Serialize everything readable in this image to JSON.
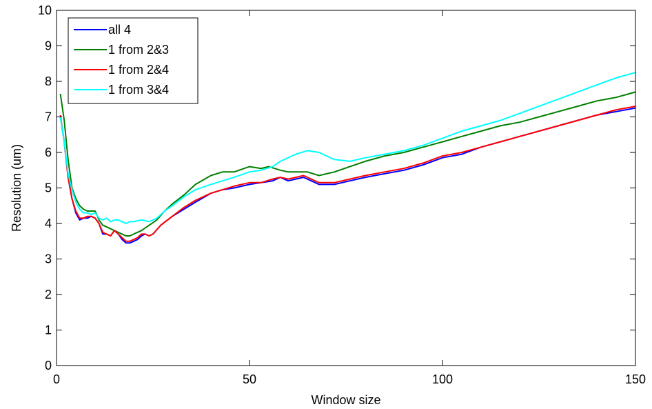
{
  "chart_data": {
    "type": "line",
    "title": "",
    "xlabel": "Window size",
    "ylabel": "Resolution (um)",
    "xlim": [
      0,
      150
    ],
    "ylim": [
      0,
      10
    ],
    "xticks": [
      0,
      50,
      100,
      150
    ],
    "yticks": [
      0,
      1,
      2,
      3,
      4,
      5,
      6,
      7,
      8,
      9,
      10
    ],
    "grid": false,
    "legend": {
      "placement": "top-left"
    },
    "series": [
      {
        "name": "all 4",
        "color": "#0000ff",
        "points": [
          [
            1,
            7.0
          ],
          [
            2,
            6.3
          ],
          [
            3,
            5.3
          ],
          [
            4,
            4.7
          ],
          [
            5,
            4.3
          ],
          [
            6,
            4.1
          ],
          [
            7,
            4.15
          ],
          [
            8,
            4.15
          ],
          [
            9,
            4.2
          ],
          [
            10,
            4.15
          ],
          [
            11,
            4.0
          ],
          [
            12,
            3.7
          ],
          [
            13,
            3.7
          ],
          [
            14,
            3.65
          ],
          [
            15,
            3.8
          ],
          [
            16,
            3.7
          ],
          [
            17,
            3.55
          ],
          [
            18,
            3.45
          ],
          [
            19,
            3.45
          ],
          [
            20,
            3.5
          ],
          [
            21,
            3.55
          ],
          [
            22,
            3.65
          ],
          [
            23,
            3.7
          ],
          [
            24,
            3.65
          ],
          [
            25,
            3.7
          ],
          [
            27,
            3.95
          ],
          [
            30,
            4.2
          ],
          [
            33,
            4.4
          ],
          [
            36,
            4.6
          ],
          [
            40,
            4.85
          ],
          [
            43,
            4.95
          ],
          [
            46,
            5.0
          ],
          [
            50,
            5.1
          ],
          [
            53,
            5.15
          ],
          [
            56,
            5.2
          ],
          [
            58,
            5.3
          ],
          [
            60,
            5.2
          ],
          [
            62,
            5.25
          ],
          [
            64,
            5.3
          ],
          [
            66,
            5.2
          ],
          [
            68,
            5.1
          ],
          [
            72,
            5.1
          ],
          [
            76,
            5.2
          ],
          [
            80,
            5.3
          ],
          [
            85,
            5.4
          ],
          [
            90,
            5.5
          ],
          [
            95,
            5.65
          ],
          [
            100,
            5.85
          ],
          [
            105,
            5.95
          ],
          [
            110,
            6.15
          ],
          [
            115,
            6.3
          ],
          [
            120,
            6.45
          ],
          [
            125,
            6.6
          ],
          [
            130,
            6.75
          ],
          [
            135,
            6.9
          ],
          [
            140,
            7.05
          ],
          [
            145,
            7.15
          ],
          [
            150,
            7.25
          ]
        ]
      },
      {
        "name": "1 from 2&3",
        "color": "#007f00",
        "points": [
          [
            1,
            7.65
          ],
          [
            2,
            6.9
          ],
          [
            3,
            5.8
          ],
          [
            4,
            5.0
          ],
          [
            5,
            4.7
          ],
          [
            6,
            4.5
          ],
          [
            7,
            4.4
          ],
          [
            8,
            4.35
          ],
          [
            9,
            4.35
          ],
          [
            10,
            4.35
          ],
          [
            11,
            4.1
          ],
          [
            12,
            3.95
          ],
          [
            13,
            3.9
          ],
          [
            14,
            3.85
          ],
          [
            15,
            3.8
          ],
          [
            16,
            3.75
          ],
          [
            17,
            3.7
          ],
          [
            18,
            3.65
          ],
          [
            19,
            3.65
          ],
          [
            20,
            3.7
          ],
          [
            22,
            3.8
          ],
          [
            24,
            3.95
          ],
          [
            26,
            4.1
          ],
          [
            28,
            4.35
          ],
          [
            30,
            4.55
          ],
          [
            33,
            4.8
          ],
          [
            36,
            5.1
          ],
          [
            40,
            5.35
          ],
          [
            43,
            5.45
          ],
          [
            46,
            5.45
          ],
          [
            50,
            5.6
          ],
          [
            53,
            5.55
          ],
          [
            55,
            5.6
          ],
          [
            58,
            5.5
          ],
          [
            60,
            5.45
          ],
          [
            62,
            5.45
          ],
          [
            65,
            5.45
          ],
          [
            68,
            5.35
          ],
          [
            72,
            5.45
          ],
          [
            76,
            5.6
          ],
          [
            80,
            5.75
          ],
          [
            85,
            5.9
          ],
          [
            90,
            6.0
          ],
          [
            95,
            6.15
          ],
          [
            100,
            6.3
          ],
          [
            105,
            6.45
          ],
          [
            110,
            6.6
          ],
          [
            115,
            6.75
          ],
          [
            120,
            6.85
          ],
          [
            125,
            7.0
          ],
          [
            130,
            7.15
          ],
          [
            135,
            7.3
          ],
          [
            140,
            7.45
          ],
          [
            145,
            7.55
          ],
          [
            150,
            7.7
          ]
        ]
      },
      {
        "name": "1 from 2&4",
        "color": "#ff0000",
        "points": [
          [
            1,
            7.05
          ],
          [
            2,
            6.3
          ],
          [
            3,
            5.3
          ],
          [
            4,
            4.7
          ],
          [
            5,
            4.35
          ],
          [
            6,
            4.15
          ],
          [
            7,
            4.15
          ],
          [
            8,
            4.2
          ],
          [
            9,
            4.2
          ],
          [
            10,
            4.15
          ],
          [
            11,
            4.0
          ],
          [
            12,
            3.75
          ],
          [
            13,
            3.7
          ],
          [
            14,
            3.65
          ],
          [
            15,
            3.8
          ],
          [
            16,
            3.7
          ],
          [
            17,
            3.6
          ],
          [
            18,
            3.5
          ],
          [
            19,
            3.5
          ],
          [
            20,
            3.55
          ],
          [
            21,
            3.6
          ],
          [
            22,
            3.7
          ],
          [
            23,
            3.7
          ],
          [
            24,
            3.65
          ],
          [
            25,
            3.7
          ],
          [
            27,
            3.95
          ],
          [
            30,
            4.2
          ],
          [
            33,
            4.45
          ],
          [
            36,
            4.65
          ],
          [
            40,
            4.85
          ],
          [
            43,
            4.95
          ],
          [
            46,
            5.05
          ],
          [
            50,
            5.15
          ],
          [
            53,
            5.15
          ],
          [
            56,
            5.25
          ],
          [
            58,
            5.3
          ],
          [
            60,
            5.25
          ],
          [
            62,
            5.3
          ],
          [
            64,
            5.35
          ],
          [
            66,
            5.25
          ],
          [
            68,
            5.15
          ],
          [
            72,
            5.15
          ],
          [
            76,
            5.25
          ],
          [
            80,
            5.35
          ],
          [
            85,
            5.45
          ],
          [
            90,
            5.55
          ],
          [
            95,
            5.7
          ],
          [
            100,
            5.9
          ],
          [
            105,
            6.0
          ],
          [
            110,
            6.15
          ],
          [
            115,
            6.3
          ],
          [
            120,
            6.45
          ],
          [
            125,
            6.6
          ],
          [
            130,
            6.75
          ],
          [
            135,
            6.9
          ],
          [
            140,
            7.05
          ],
          [
            145,
            7.2
          ],
          [
            150,
            7.3
          ]
        ]
      },
      {
        "name": "1 from 3&4",
        "color": "#00ffff",
        "points": [
          [
            1,
            7.0
          ],
          [
            2,
            6.3
          ],
          [
            3,
            5.4
          ],
          [
            4,
            4.95
          ],
          [
            5,
            4.6
          ],
          [
            6,
            4.4
          ],
          [
            7,
            4.3
          ],
          [
            8,
            4.3
          ],
          [
            9,
            4.25
          ],
          [
            10,
            4.3
          ],
          [
            11,
            4.15
          ],
          [
            12,
            4.1
          ],
          [
            13,
            4.15
          ],
          [
            14,
            4.05
          ],
          [
            15,
            4.1
          ],
          [
            16,
            4.1
          ],
          [
            17,
            4.05
          ],
          [
            18,
            4.0
          ],
          [
            19,
            4.05
          ],
          [
            20,
            4.05
          ],
          [
            22,
            4.1
          ],
          [
            24,
            4.05
          ],
          [
            26,
            4.15
          ],
          [
            28,
            4.35
          ],
          [
            30,
            4.5
          ],
          [
            33,
            4.75
          ],
          [
            36,
            4.95
          ],
          [
            40,
            5.1
          ],
          [
            43,
            5.2
          ],
          [
            46,
            5.3
          ],
          [
            50,
            5.45
          ],
          [
            53,
            5.5
          ],
          [
            56,
            5.6
          ],
          [
            58,
            5.75
          ],
          [
            60,
            5.85
          ],
          [
            62,
            5.95
          ],
          [
            65,
            6.05
          ],
          [
            68,
            6.0
          ],
          [
            70,
            5.9
          ],
          [
            72,
            5.8
          ],
          [
            76,
            5.75
          ],
          [
            80,
            5.85
          ],
          [
            85,
            5.95
          ],
          [
            90,
            6.05
          ],
          [
            95,
            6.2
          ],
          [
            100,
            6.4
          ],
          [
            105,
            6.6
          ],
          [
            110,
            6.75
          ],
          [
            115,
            6.9
          ],
          [
            120,
            7.1
          ],
          [
            125,
            7.3
          ],
          [
            130,
            7.5
          ],
          [
            135,
            7.7
          ],
          [
            140,
            7.9
          ],
          [
            145,
            8.1
          ],
          [
            150,
            8.25
          ]
        ]
      }
    ]
  }
}
